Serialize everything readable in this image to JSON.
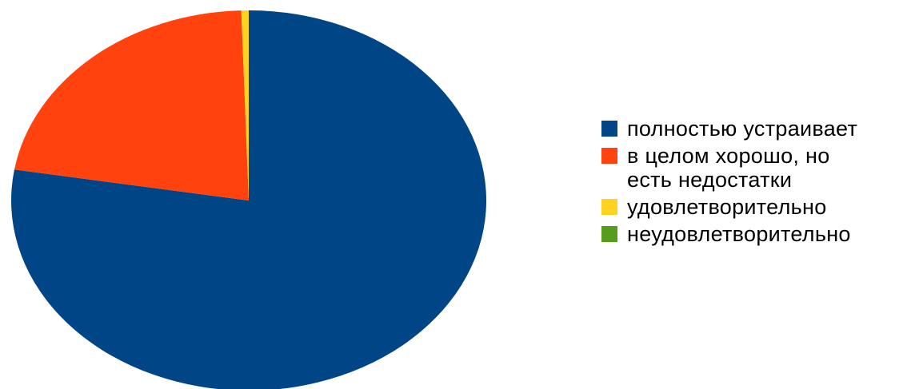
{
  "chart_data": {
    "type": "pie",
    "title": "",
    "categories": [
      "полностью устраивает",
      "в целом хорошо, но\nесть недостатки",
      "удовлетворительно",
      "неудовлетворительно"
    ],
    "values": [
      77.6,
      21.9,
      0.5,
      0.0
    ],
    "colors": [
      "#004586",
      "#ff420e",
      "#ffd320",
      "#579d1c"
    ],
    "legend_position": "right",
    "start_angle_deg": 0,
    "direction": "clockwise"
  },
  "legend": {
    "items": [
      {
        "label": "полностью устраивает",
        "color": "#004586"
      },
      {
        "label": "в целом хорошо, но\nесть недостатки",
        "color": "#ff420e"
      },
      {
        "label": "удовлетворительно",
        "color": "#ffd320"
      },
      {
        "label": "неудовлетворительно",
        "color": "#579d1c"
      }
    ]
  }
}
